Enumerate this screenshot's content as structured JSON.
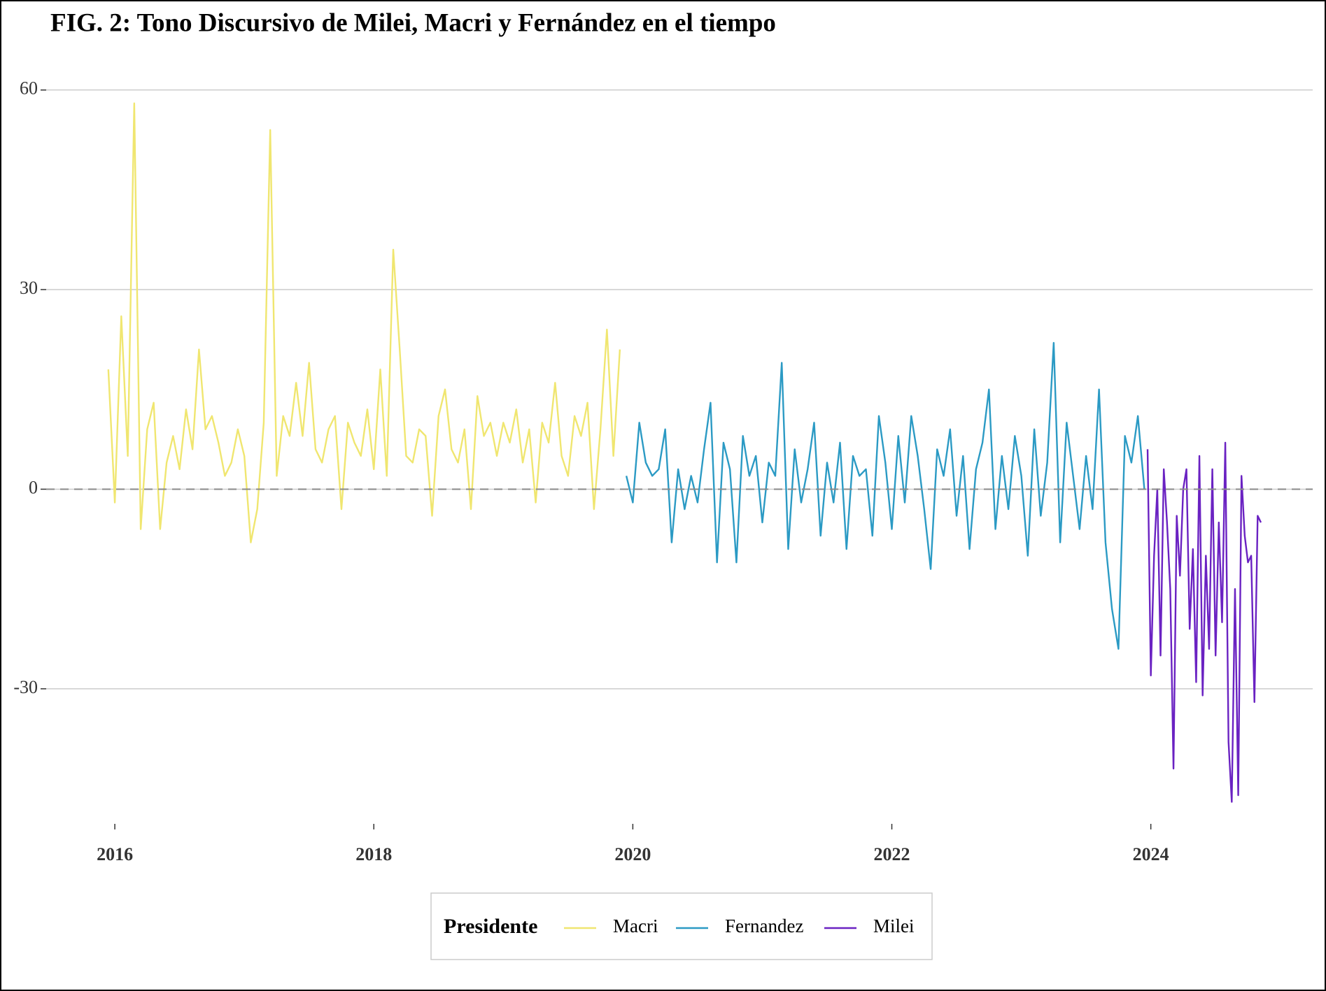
{
  "chart_data": {
    "type": "line",
    "title": "FIG. 2: Tono Discursivo de Milei, Macri y Fernández en el tiempo",
    "legend_title": "Presidente",
    "legend": "bottom",
    "grid": true,
    "hline": 0,
    "xlim": [
      2015.47,
      2025.25
    ],
    "xticks": [
      2016,
      2018,
      2020,
      2022,
      2024
    ],
    "ylim": [
      -50.3,
      62.7
    ],
    "yticks": [
      -30,
      0,
      30,
      60
    ],
    "series": [
      {
        "name": "Macri",
        "color": "#f0e670",
        "x": [
          2015.95,
          2016,
          2016.05,
          2016.1,
          2016.15,
          2016.2,
          2016.25,
          2016.3,
          2016.35,
          2016.4,
          2016.45,
          2016.5,
          2016.55,
          2016.6,
          2016.65,
          2016.7,
          2016.75,
          2016.8,
          2016.85,
          2016.9,
          2016.95,
          2017,
          2017.05,
          2017.1,
          2017.15,
          2017.2,
          2017.25,
          2017.3,
          2017.35,
          2017.4,
          2017.45,
          2017.5,
          2017.55,
          2017.6,
          2017.65,
          2017.7,
          2017.75,
          2017.8,
          2017.85,
          2017.9,
          2017.95,
          2018,
          2018.05,
          2018.1,
          2018.15,
          2018.2,
          2018.25,
          2018.3,
          2018.35,
          2018.4,
          2018.45,
          2018.5,
          2018.55,
          2018.6,
          2018.65,
          2018.7,
          2018.75,
          2018.8,
          2018.85,
          2018.9,
          2018.95,
          2019,
          2019.05,
          2019.1,
          2019.15,
          2019.2,
          2019.25,
          2019.3,
          2019.35,
          2019.4,
          2019.45,
          2019.5,
          2019.55,
          2019.6,
          2019.65,
          2019.7,
          2019.75,
          2019.8,
          2019.85,
          2019.9
        ],
        "values": [
          18,
          -2,
          26,
          5,
          58,
          -6,
          9,
          13,
          -6,
          4,
          8,
          3,
          12,
          6,
          21,
          9,
          11,
          7,
          2,
          4,
          9,
          5,
          -8,
          -3,
          10,
          54,
          2,
          11,
          8,
          16,
          8,
          19,
          6,
          4,
          9,
          11,
          -3,
          10,
          7,
          5,
          12,
          3,
          18,
          2,
          36,
          21,
          5,
          4,
          9,
          8,
          -4,
          11,
          15,
          6,
          4,
          9,
          -3,
          14,
          8,
          10,
          5,
          10,
          7,
          12,
          4,
          9,
          -2,
          10,
          7,
          16,
          5,
          2,
          11,
          8,
          13,
          -3,
          9,
          24,
          5,
          21
        ]
      },
      {
        "name": "Fernandez",
        "color": "#2b9ac4",
        "x": [
          2019.95,
          2020,
          2020.05,
          2020.1,
          2020.15,
          2020.2,
          2020.25,
          2020.3,
          2020.35,
          2020.4,
          2020.45,
          2020.5,
          2020.55,
          2020.6,
          2020.65,
          2020.7,
          2020.75,
          2020.8,
          2020.85,
          2020.9,
          2020.95,
          2021,
          2021.05,
          2021.1,
          2021.15,
          2021.2,
          2021.25,
          2021.3,
          2021.35,
          2021.4,
          2021.45,
          2021.5,
          2021.55,
          2021.6,
          2021.65,
          2021.7,
          2021.75,
          2021.8,
          2021.85,
          2021.9,
          2021.95,
          2022,
          2022.05,
          2022.1,
          2022.15,
          2022.2,
          2022.25,
          2022.3,
          2022.35,
          2022.4,
          2022.45,
          2022.5,
          2022.55,
          2022.6,
          2022.65,
          2022.7,
          2022.75,
          2022.8,
          2022.85,
          2022.9,
          2022.95,
          2023,
          2023.05,
          2023.1,
          2023.15,
          2023.2,
          2023.25,
          2023.3,
          2023.35,
          2023.4,
          2023.45,
          2023.5,
          2023.55,
          2023.6,
          2023.65,
          2023.7,
          2023.75,
          2023.8,
          2023.85,
          2023.9,
          2023.95
        ],
        "values": [
          2,
          -2,
          10,
          4,
          2,
          3,
          9,
          -8,
          3,
          -3,
          2,
          -2,
          6,
          13,
          -11,
          7,
          3,
          -11,
          8,
          2,
          5,
          -5,
          4,
          2,
          19,
          -9,
          6,
          -2,
          3,
          10,
          -7,
          4,
          -2,
          7,
          -9,
          5,
          2,
          3,
          -7,
          11,
          4,
          -6,
          8,
          -2,
          11,
          5,
          -3,
          -12,
          6,
          2,
          9,
          -4,
          5,
          -9,
          3,
          7,
          15,
          -6,
          5,
          -3,
          8,
          2,
          -10,
          9,
          -4,
          4,
          22,
          -8,
          10,
          2,
          -6,
          5,
          -3,
          15,
          -8,
          -18,
          -24,
          8,
          4,
          11,
          0
        ]
      },
      {
        "name": "Milei",
        "color": "#6a22c2",
        "x": [
          2023.975,
          2024,
          2024.025,
          2024.05,
          2024.075,
          2024.1,
          2024.125,
          2024.15,
          2024.175,
          2024.2,
          2024.225,
          2024.25,
          2024.275,
          2024.3,
          2024.325,
          2024.35,
          2024.375,
          2024.4,
          2024.425,
          2024.45,
          2024.475,
          2024.5,
          2024.525,
          2024.55,
          2024.575,
          2024.6,
          2024.625,
          2024.65,
          2024.675,
          2024.7,
          2024.725,
          2024.75,
          2024.775,
          2024.8,
          2024.825,
          2024.85
        ],
        "values": [
          6,
          -28,
          -10,
          0,
          -25,
          3,
          -5,
          -15,
          -42,
          -4,
          -13,
          0,
          3,
          -21,
          -9,
          -29,
          5,
          -31,
          -10,
          -24,
          3,
          -25,
          -5,
          -20,
          7,
          -38,
          -47,
          -15,
          -46,
          2,
          -7,
          -11,
          -10,
          -32,
          -4,
          -5
        ]
      }
    ]
  }
}
